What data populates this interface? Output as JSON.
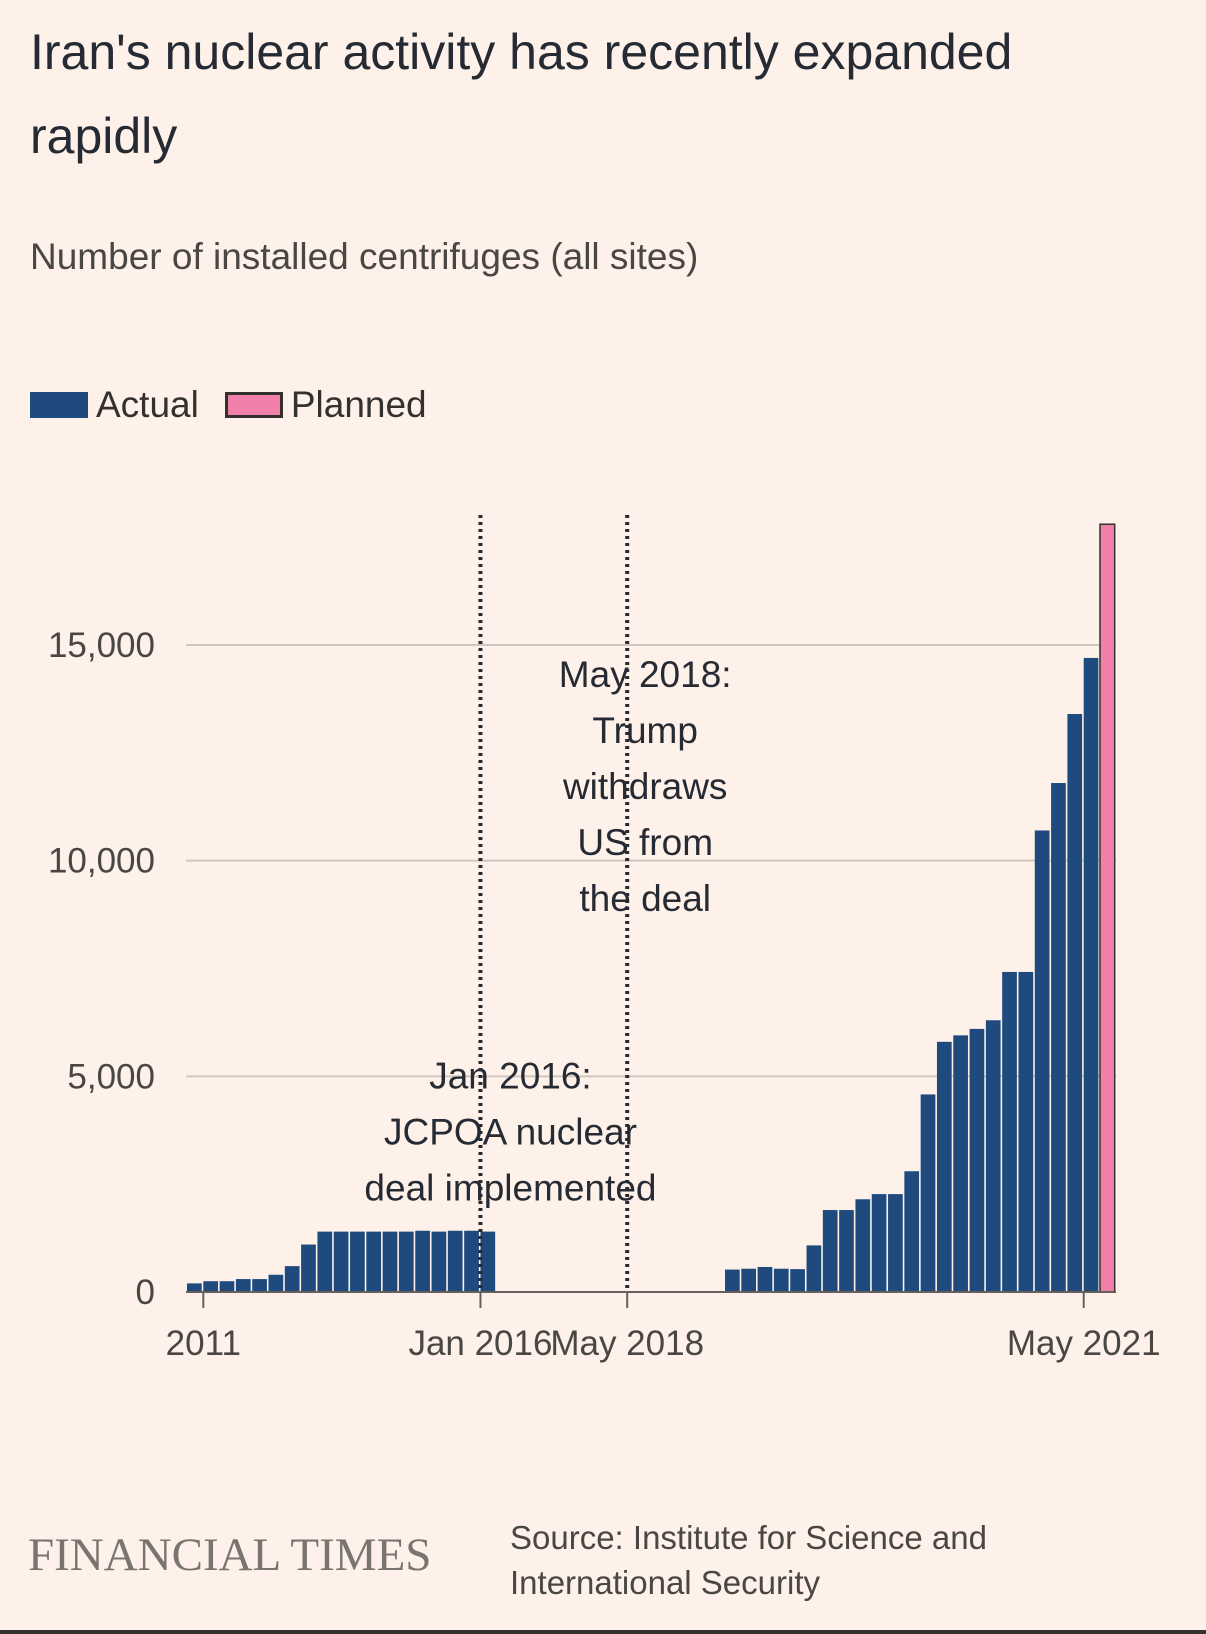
{
  "chart_data": {
    "type": "bar",
    "title": "Iran's nuclear activity has recently expanded rapidly",
    "subtitle": "Number of installed centrifuges (all sites)",
    "legend": [
      {
        "name": "Actual",
        "color": "#1f4a7e"
      },
      {
        "name": "Planned",
        "color": "#f07fa9"
      }
    ],
    "ylim": [
      0,
      18000
    ],
    "yticks": [
      "15,000",
      "10,000",
      "5,000",
      "0"
    ],
    "ytick_values": [
      15000,
      10000,
      5000,
      0
    ],
    "xticks": [
      "2011",
      "Jan 2016",
      "May 2018",
      "May 2021"
    ],
    "xtick_bar_index": [
      1,
      18,
      27,
      55
    ],
    "series": [
      {
        "name": "Actual",
        "color": "#1f4a7e",
        "values": [
          200,
          250,
          250,
          300,
          300,
          400,
          600,
          1100,
          1400,
          1400,
          1400,
          1400,
          1400,
          1400,
          1420,
          1400,
          1420,
          1420,
          1400,
          0,
          0,
          0,
          0,
          0,
          0,
          0,
          0,
          0,
          0,
          0,
          0,
          0,
          0,
          520,
          540,
          580,
          540,
          530,
          1080,
          1900,
          1900,
          2150,
          2270,
          2270,
          2800,
          4580,
          5800,
          5950,
          6100,
          6300,
          7420,
          7420,
          10700,
          11800,
          13400,
          14700
        ]
      },
      {
        "name": "Planned",
        "color": "#f07fa9",
        "values": [
          0,
          0,
          0,
          0,
          0,
          0,
          0,
          0,
          0,
          0,
          0,
          0,
          0,
          0,
          0,
          0,
          0,
          0,
          0,
          0,
          0,
          0,
          0,
          0,
          0,
          0,
          0,
          0,
          0,
          0,
          0,
          0,
          0,
          0,
          0,
          0,
          0,
          0,
          0,
          0,
          0,
          0,
          0,
          0,
          0,
          0,
          0,
          0,
          0,
          0,
          0,
          0,
          0,
          0,
          0,
          0,
          17800
        ]
      }
    ],
    "annotations": [
      {
        "bar_index": 18,
        "lines": [
          "Jan 2016:",
          "JCPOA nuclear",
          "deal implemented"
        ],
        "value": 5000
      },
      {
        "bar_index": 27,
        "lines": [
          "May 2018:",
          "Trump",
          "withdraws",
          "US from",
          "the deal"
        ],
        "value": 14300
      }
    ]
  },
  "footer": {
    "brand": "FINANCIAL TIMES",
    "source_line1": "Source: Institute for Science and",
    "source_line2": "International Security"
  }
}
